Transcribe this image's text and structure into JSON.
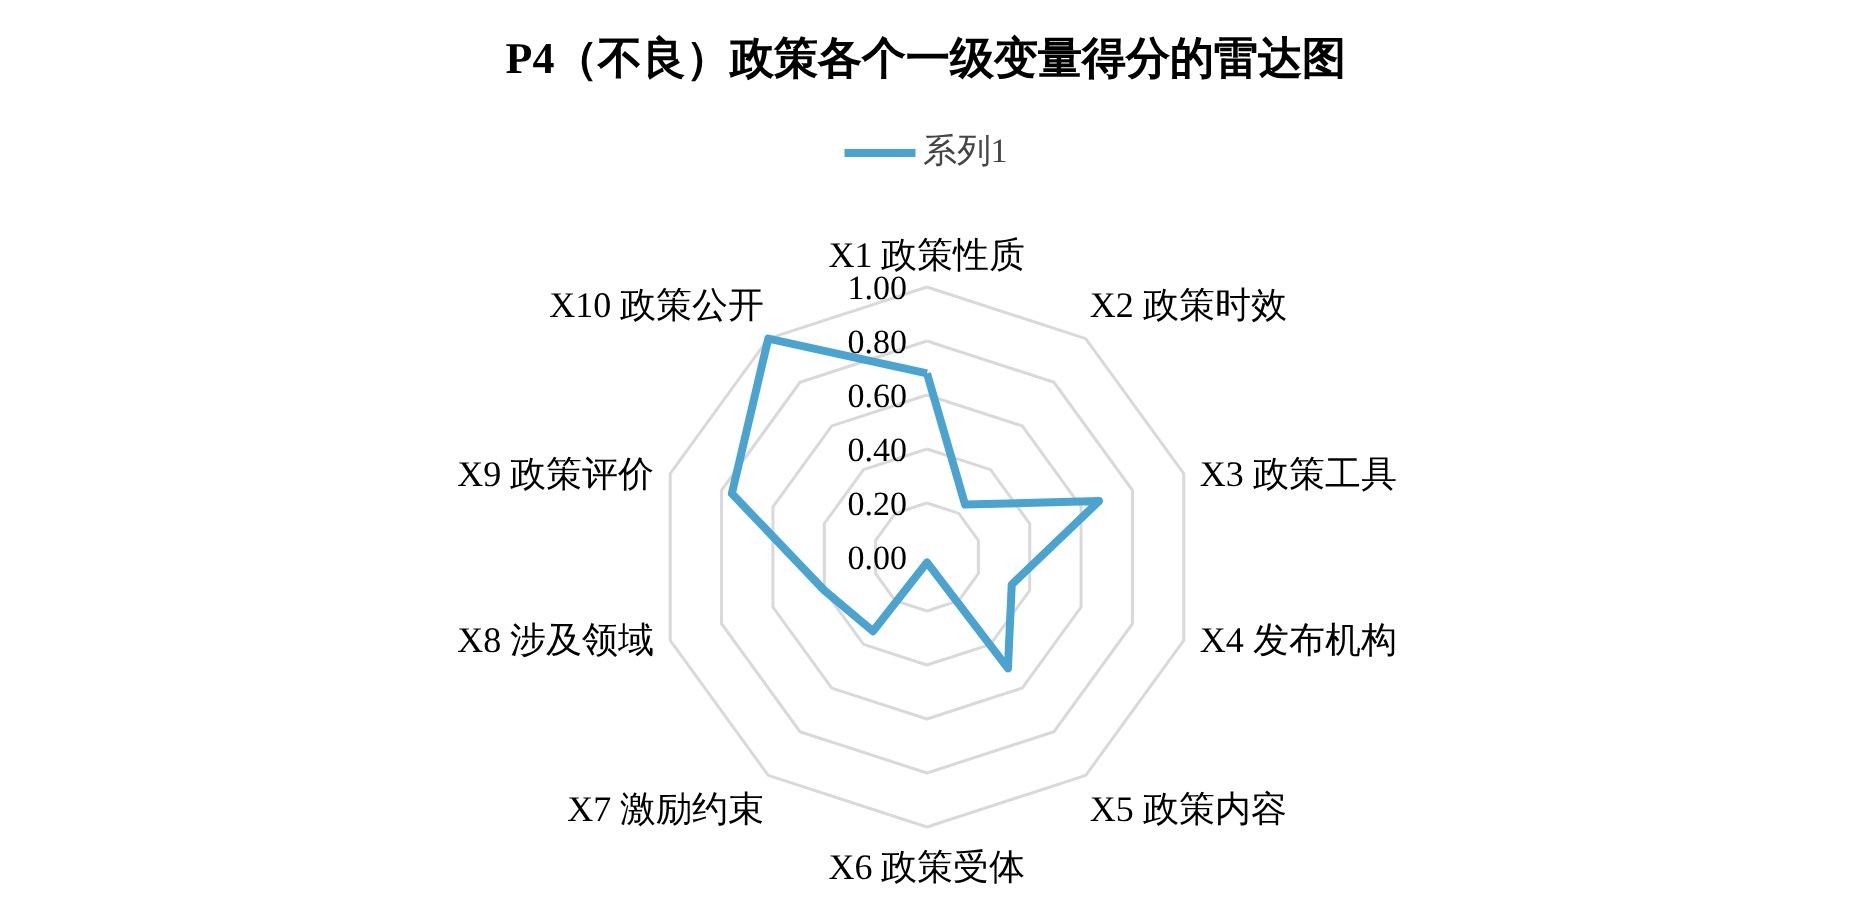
{
  "chart_data": {
    "type": "radar",
    "title": "P4（不良）政策各个一级变量得分的雷达图",
    "categories": [
      "X1 政策性质",
      "X2 政策时效",
      "X3 政策工具",
      "X4 发布机构",
      "X5 政策内容",
      "X6 政策受体",
      "X7 激励约束",
      "X8 涉及领域",
      "X9 政策评价",
      "X10 政策公开"
    ],
    "series": [
      {
        "name": "系列1",
        "color": "#4ba3d0",
        "values": [
          0.68,
          0.24,
          0.67,
          0.33,
          0.51,
          0.02,
          0.34,
          0.4,
          0.76,
          1.0
        ]
      }
    ],
    "ylim": [
      0,
      1
    ],
    "yticks": [
      {
        "value": 0,
        "label": "0.00"
      },
      {
        "value": 0.2,
        "label": "0.20"
      },
      {
        "value": 0.4,
        "label": "0.40"
      },
      {
        "value": 0.6,
        "label": "0.60"
      },
      {
        "value": 0.8,
        "label": "0.80"
      },
      {
        "value": 1,
        "label": "1.00"
      }
    ],
    "grid": true,
    "legend": "top"
  }
}
